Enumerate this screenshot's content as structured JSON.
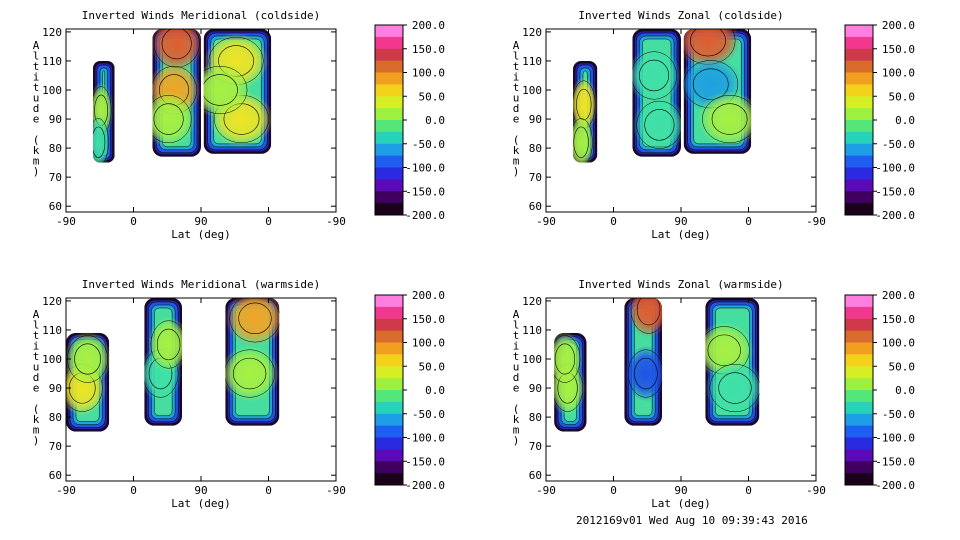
{
  "footer": "2012169v01 Wed Aug 10 09:39:43 2016",
  "colorbar": {
    "labels": [
      "200.0",
      "150.0",
      "100.0",
      "50.0",
      "0.0",
      "-50.0",
      "-100.0",
      "-150.0",
      "-200.0"
    ],
    "colors": [
      "#ff7fe0",
      "#f2388e",
      "#ce3a4a",
      "#d96b2c",
      "#f19f21",
      "#f4d21c",
      "#d8ee24",
      "#9ef040",
      "#55e67a",
      "#26d2b8",
      "#1e9ee4",
      "#1e5ef0",
      "#2a2ae0",
      "#5a0ab8",
      "#400060",
      "#1a0018"
    ]
  },
  "shading_colors": [
    "#440a9a",
    "#1f52e8",
    "#1fa0e0",
    "#3fe0a8",
    "#a8f042",
    "#f0e424",
    "#f2a426",
    "#e05c30",
    "#cc3454"
  ],
  "chart_data": [
    {
      "type": "heatmap",
      "title": "Inverted Winds Meridional (coldside)",
      "xlabel": "Lat (deg)",
      "ylabel": "Altitude (km)",
      "xticks": [
        "-90",
        "0",
        "90",
        "0",
        "-90"
      ],
      "yticks": [
        60,
        70,
        80,
        90,
        100,
        110,
        120
      ],
      "ylim": [
        58,
        121
      ],
      "vlim": [
        -200,
        200
      ],
      "segments": [
        {
          "x": [
            0.1,
            0.18
          ],
          "alt": [
            75,
            110
          ],
          "blobs": [
            {
              "x": 0.13,
              "a": 93,
              "v": -10
            },
            {
              "x": 0.12,
              "a": 82,
              "v": -40
            }
          ]
        },
        {
          "x": [
            0.32,
            0.5
          ],
          "alt": [
            77,
            121
          ],
          "blobs": [
            {
              "x": 0.41,
              "a": 116,
              "v": 160
            },
            {
              "x": 0.4,
              "a": 100,
              "v": 80
            },
            {
              "x": 0.38,
              "a": 90,
              "v": -20
            }
          ]
        },
        {
          "x": [
            0.51,
            0.76
          ],
          "alt": [
            78,
            121
          ],
          "blobs": [
            {
              "x": 0.63,
              "a": 110,
              "v": 40
            },
            {
              "x": 0.65,
              "a": 90,
              "v": 40
            },
            {
              "x": 0.57,
              "a": 100,
              "v": -20
            }
          ]
        }
      ]
    },
    {
      "type": "heatmap",
      "title": "Inverted Winds Zonal (coldside)",
      "xlabel": "Lat (deg)",
      "ylabel": "Altitude (km)",
      "xticks": [
        "-90",
        "0",
        "90",
        "0",
        "-90"
      ],
      "yticks": [
        60,
        70,
        80,
        90,
        100,
        110,
        120
      ],
      "ylim": [
        58,
        121
      ],
      "vlim": [
        -200,
        200
      ],
      "segments": [
        {
          "x": [
            0.1,
            0.19
          ],
          "alt": [
            75,
            110
          ],
          "blobs": [
            {
              "x": 0.14,
              "a": 95,
              "v": 50
            },
            {
              "x": 0.13,
              "a": 82,
              "v": -20
            }
          ]
        },
        {
          "x": [
            0.32,
            0.5
          ],
          "alt": [
            77,
            121
          ],
          "blobs": [
            {
              "x": 0.4,
              "a": 105,
              "v": -40
            },
            {
              "x": 0.42,
              "a": 88,
              "v": -40
            }
          ]
        },
        {
          "x": [
            0.51,
            0.76
          ],
          "alt": [
            78,
            121
          ],
          "blobs": [
            {
              "x": 0.6,
              "a": 117,
              "v": 140
            },
            {
              "x": 0.61,
              "a": 102,
              "v": -110
            },
            {
              "x": 0.68,
              "a": 90,
              "v": -20
            }
          ]
        }
      ]
    },
    {
      "type": "heatmap",
      "title": "Inverted Winds Meridional (warmside)",
      "xlabel": "Lat (deg)",
      "ylabel": "Altitude (km)",
      "xticks": [
        "-90",
        "0",
        "90",
        "0",
        "-90"
      ],
      "yticks": [
        60,
        70,
        80,
        90,
        100,
        110,
        120
      ],
      "ylim": [
        58,
        121
      ],
      "vlim": [
        -200,
        200
      ],
      "segments": [
        {
          "x": [
            0.0,
            0.16
          ],
          "alt": [
            75,
            109
          ],
          "blobs": [
            {
              "x": 0.06,
              "a": 90,
              "v": 30
            },
            {
              "x": 0.08,
              "a": 100,
              "v": -10
            }
          ]
        },
        {
          "x": [
            0.29,
            0.43
          ],
          "alt": [
            77,
            121
          ],
          "blobs": [
            {
              "x": 0.35,
              "a": 95,
              "v": -60
            },
            {
              "x": 0.38,
              "a": 105,
              "v": 0
            }
          ]
        },
        {
          "x": [
            0.59,
            0.79
          ],
          "alt": [
            77,
            121
          ],
          "blobs": [
            {
              "x": 0.7,
              "a": 114,
              "v": 80
            },
            {
              "x": 0.68,
              "a": 95,
              "v": 0
            }
          ]
        }
      ]
    },
    {
      "type": "heatmap",
      "title": "Inverted Winds Zonal (warmside)",
      "xlabel": "Lat (deg)",
      "ylabel": "Altitude (km)",
      "xticks": [
        "-90",
        "0",
        "90",
        "0",
        "-90"
      ],
      "yticks": [
        60,
        70,
        80,
        90,
        100,
        110,
        120
      ],
      "ylim": [
        58,
        121
      ],
      "vlim": [
        -200,
        200
      ],
      "segments": [
        {
          "x": [
            0.03,
            0.15
          ],
          "alt": [
            75,
            109
          ],
          "blobs": [
            {
              "x": 0.08,
              "a": 90,
              "v": 20
            },
            {
              "x": 0.07,
              "a": 100,
              "v": -20
            }
          ]
        },
        {
          "x": [
            0.29,
            0.43
          ],
          "alt": [
            77,
            121
          ],
          "blobs": [
            {
              "x": 0.38,
              "a": 117,
              "v": 160
            },
            {
              "x": 0.37,
              "a": 95,
              "v": -130
            }
          ]
        },
        {
          "x": [
            0.59,
            0.79
          ],
          "alt": [
            77,
            121
          ],
          "blobs": [
            {
              "x": 0.66,
              "a": 103,
              "v": 20
            },
            {
              "x": 0.7,
              "a": 90,
              "v": -60
            }
          ]
        }
      ]
    }
  ]
}
